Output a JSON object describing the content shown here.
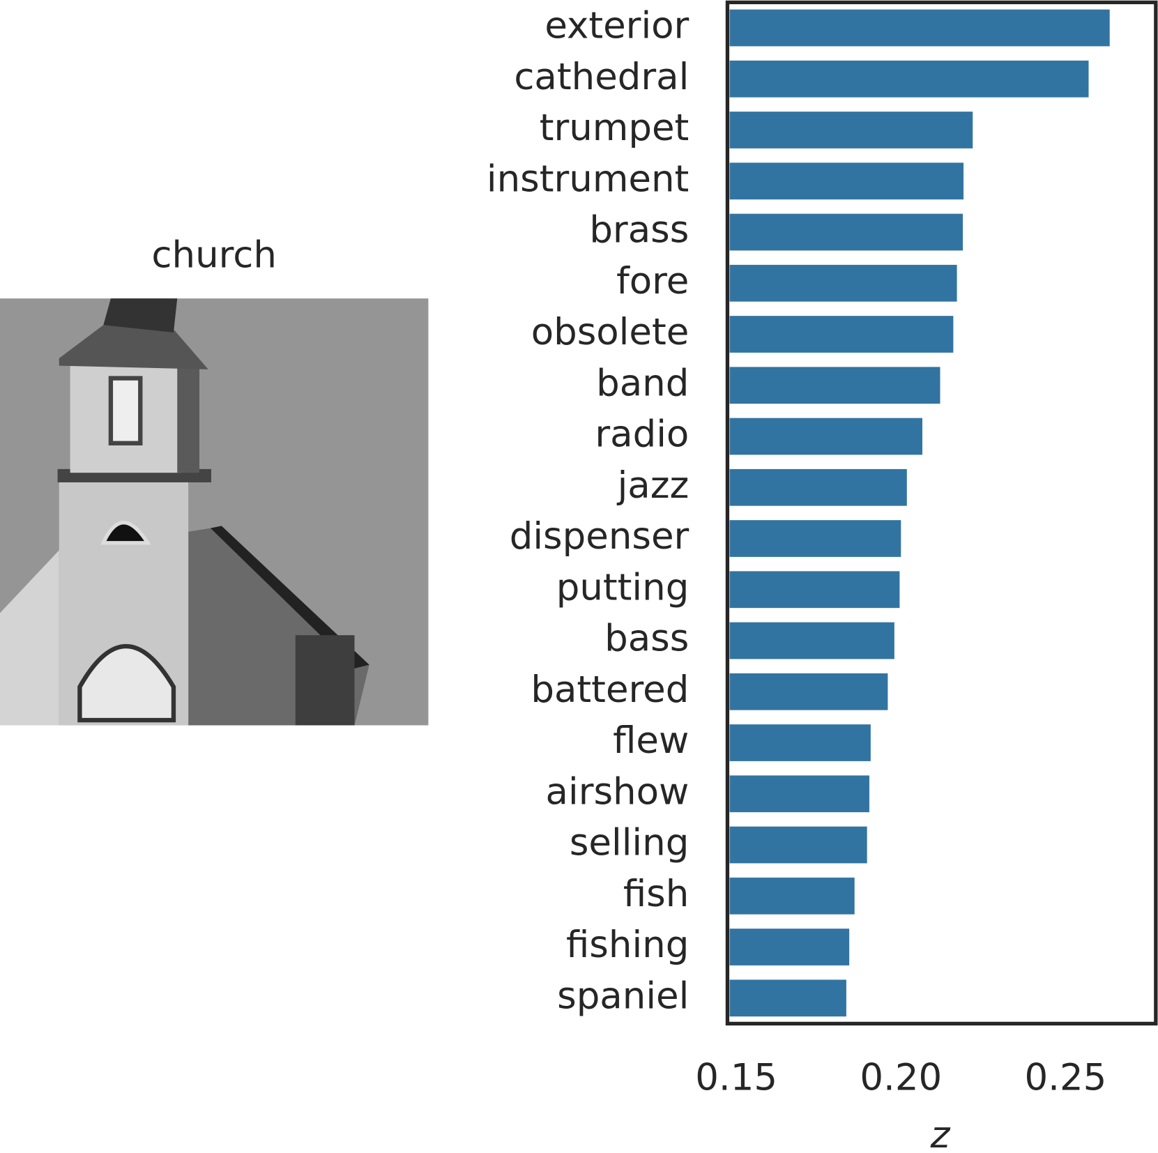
{
  "image": {
    "title": "church"
  },
  "chart_data": {
    "type": "barh",
    "xlabel": "z",
    "categories": [
      "exterior",
      "cathedral",
      "trumpet",
      "instrument",
      "brass",
      "fore",
      "obsolete",
      "band",
      "radio",
      "jazz",
      "dispenser",
      "putting",
      "bass",
      "battered",
      "flew",
      "airshow",
      "selling",
      "fish",
      "fishing",
      "spaniel"
    ],
    "values": [
      0.2634,
      0.257,
      0.2218,
      0.219,
      0.2188,
      0.217,
      0.2159,
      0.2119,
      0.2065,
      0.2018,
      0.2,
      0.1996,
      0.198,
      0.196,
      0.1908,
      0.1904,
      0.1897,
      0.1859,
      0.1843,
      0.1834
    ],
    "color": "#3274a1",
    "xlim": [
      0.1473,
      0.2774
    ],
    "xticks": [
      {
        "value": 0.15,
        "label": "0.15"
      },
      {
        "value": 0.2,
        "label": "0.20"
      },
      {
        "value": 0.25,
        "label": "0.25"
      }
    ],
    "grid": false
  }
}
